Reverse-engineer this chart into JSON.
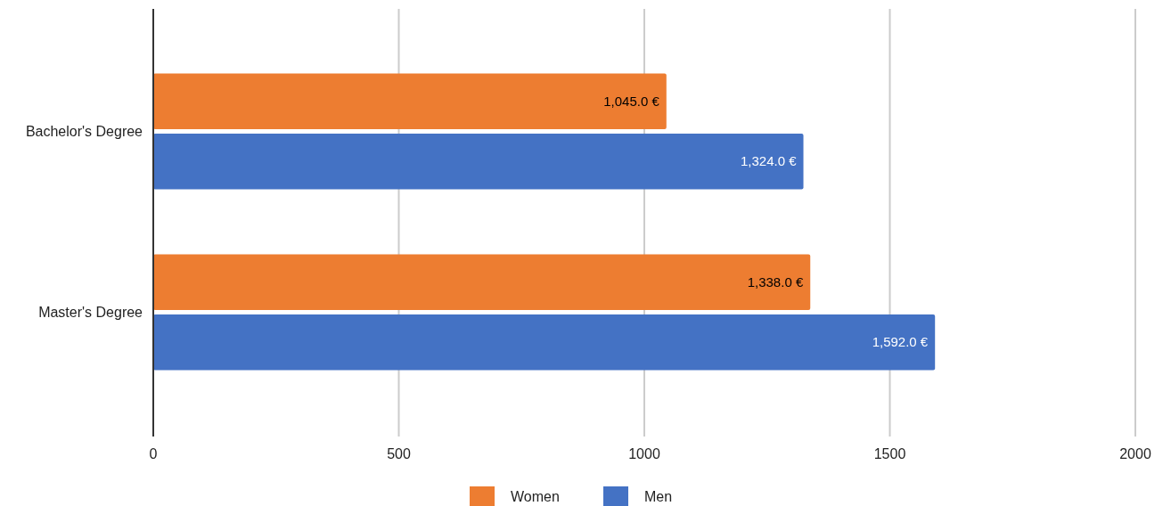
{
  "chart_data": {
    "type": "bar",
    "orientation": "horizontal",
    "categories": [
      "Bachelor's Degree",
      "Master's Degree"
    ],
    "series": [
      {
        "name": "Women",
        "color": "#ed7d31",
        "values": [
          1045,
          1338
        ],
        "value_labels": [
          "1,045.0 €",
          "1,338.0 €"
        ]
      },
      {
        "name": "Men",
        "color": "#4472c4",
        "values": [
          1324,
          1592
        ],
        "value_labels": [
          "1,324.0 €",
          "1,592.0 €"
        ]
      }
    ],
    "xlim": [
      0,
      2000
    ],
    "xticks": [
      0,
      500,
      1000,
      1500,
      2000
    ],
    "grid": "x",
    "legend": "bottom"
  }
}
